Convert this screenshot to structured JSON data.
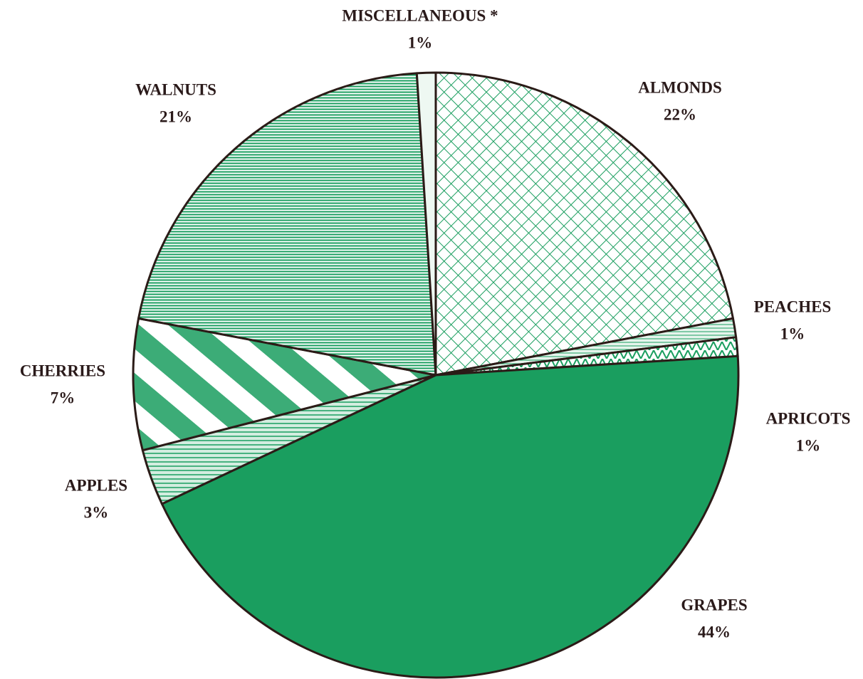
{
  "chart_data": {
    "type": "pie",
    "categories": [
      "ALMONDS",
      "PEACHES",
      "APRICOTS",
      "GRAPES",
      "APPLES",
      "CHERRIES",
      "WALNUTS",
      "MISCELLANEOUS *"
    ],
    "values": [
      22,
      1,
      1,
      44,
      3,
      7,
      21,
      1
    ],
    "value_labels": [
      "22%",
      "1%",
      "1%",
      "44%",
      "3%",
      "7%",
      "21%",
      "1%"
    ],
    "colors": [
      "#1a9e5f",
      "#1a9e5f",
      "#1a9e5f",
      "#1a9e5f",
      "#1a9e5f",
      "#1a9e5f",
      "#1a9e5f",
      "#1a9e5f"
    ]
  }
}
